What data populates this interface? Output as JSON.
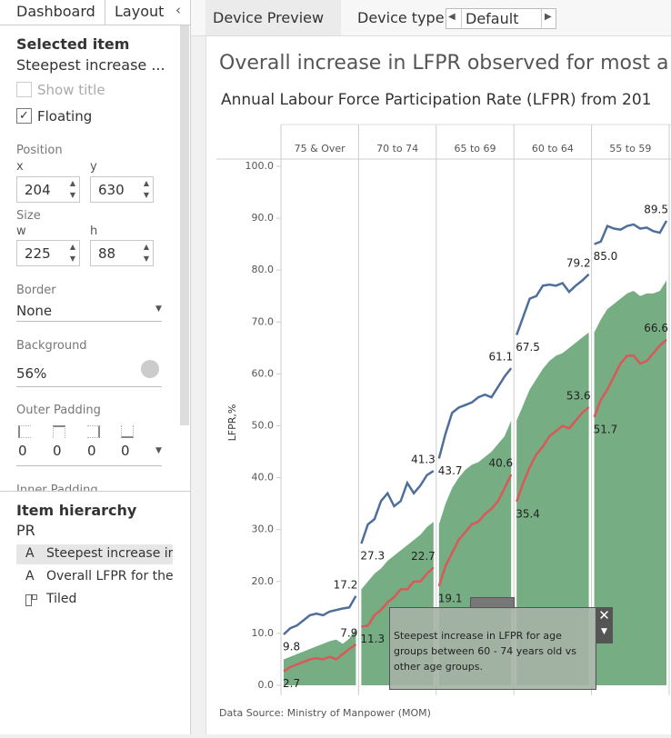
{
  "sidebar": {
    "tabs": [
      "Dashboard",
      "Layout"
    ],
    "selected_item": {
      "heading": "Selected item",
      "name": "Steepest increase ...",
      "show_title": "Show title",
      "floating": "Floating"
    },
    "position": {
      "label": "Position",
      "x_label": "x",
      "y_label": "y",
      "x": 204,
      "y": 630
    },
    "size": {
      "label": "Size",
      "w_label": "w",
      "h_label": "h",
      "w": 225,
      "h": 88
    },
    "border": {
      "label": "Border",
      "value": "None"
    },
    "background": {
      "label": "Background",
      "value": "56%"
    },
    "outer_padding": {
      "label": "Outer Padding",
      "values": [
        0,
        0,
        0,
        0
      ]
    },
    "inner_padding": {
      "label": "Inner Padding"
    },
    "hierarchy": {
      "heading": "Item hierarchy",
      "root": "PR",
      "items": [
        "Steepest increase in",
        "Overall LFPR for thes",
        "Tiled"
      ]
    }
  },
  "toolbar": {
    "device_preview": "Device Preview",
    "device_type_label": "Device type",
    "device_type": "Default"
  },
  "dashboard": {
    "title": "Overall increase in LFPR observed for most a",
    "subtitle": "Annual Labour Force Participation Rate (LFPR) from 201",
    "source": "Data Source: Ministry of Manpower (MOM)",
    "annotation": "Steepest increase in LFPR for age groups between 60 - 74 years old vs other age groups.",
    "chart": {
      "type": "area_line",
      "y_label": "LFPR,%",
      "ylim": [
        0,
        100
      ],
      "yticks": [
        {
          "value": 0,
          "label": "0.0"
        },
        {
          "value": 10,
          "label": "10.0"
        },
        {
          "value": 20,
          "label": "20.0"
        },
        {
          "value": 30,
          "label": "30.0"
        },
        {
          "value": 40,
          "label": "40.0"
        },
        {
          "value": 50,
          "label": "50.0"
        },
        {
          "value": 60,
          "label": "60.0"
        },
        {
          "value": 70,
          "label": "70.0"
        },
        {
          "value": 80,
          "label": "80.0"
        },
        {
          "value": 90,
          "label": "90.0"
        },
        {
          "value": 100,
          "label": "100.0"
        }
      ],
      "grid": false,
      "panels": [
        {
          "name": "75 & Over",
          "series": [
            {
              "mark": "area",
              "color": "#5f9f6c",
              "values": [
                5,
                5.5,
                6,
                6.5,
                7,
                7.5,
                8,
                8.5,
                8.8,
                8,
                9,
                11
              ]
            },
            {
              "mark": "line",
              "color": "#4e6f9a",
              "values": [
                9.8,
                11,
                11.5,
                12.5,
                13.5,
                13.8,
                13.5,
                14.2,
                14.5,
                14.8,
                15,
                17.2
              ]
            },
            {
              "mark": "line",
              "color": "#d9585a",
              "values": [
                2.7,
                3.5,
                4,
                4.5,
                5,
                5.2,
                5,
                5.5,
                5,
                6,
                7,
                7.9
              ]
            }
          ]
        },
        {
          "name": "70 to 74",
          "series": [
            {
              "mark": "area",
              "color": "#5f9f6c",
              "values": [
                18.5,
                20,
                21.5,
                22.5,
                24,
                25,
                26,
                27,
                28,
                29,
                30.5,
                31.5
              ]
            },
            {
              "mark": "line",
              "color": "#4e6f9a",
              "values": [
                27.3,
                31,
                32,
                35.5,
                37,
                34.5,
                35.5,
                39,
                37,
                38.5,
                40.5,
                41.3
              ]
            },
            {
              "mark": "line",
              "color": "#d9585a",
              "values": [
                11.3,
                11.5,
                13.5,
                14.5,
                16,
                17,
                18.5,
                18.5,
                20,
                20,
                21.5,
                22.7
              ]
            }
          ]
        },
        {
          "name": "65 to 69",
          "series": [
            {
              "mark": "area",
              "color": "#5f9f6c",
              "values": [
                31,
                35,
                38,
                40,
                41.5,
                42.5,
                43,
                44,
                45,
                46.5,
                48,
                51
              ]
            },
            {
              "mark": "line",
              "color": "#4e6f9a",
              "values": [
                43.7,
                48.5,
                52.5,
                53.5,
                54,
                54.5,
                55.5,
                56,
                55.5,
                57.5,
                59.5,
                61.1
              ]
            },
            {
              "mark": "line",
              "color": "#d9585a",
              "values": [
                19.1,
                23,
                25.5,
                28,
                29.5,
                31,
                31.5,
                33,
                34,
                35.5,
                38,
                40.6
              ]
            }
          ]
        },
        {
          "name": "60 to 64",
          "series": [
            {
              "mark": "area",
              "color": "#5f9f6c",
              "values": [
                51,
                54,
                57,
                59,
                61,
                62.5,
                63.5,
                64,
                65,
                66,
                67,
                68
              ]
            },
            {
              "mark": "line",
              "color": "#4e6f9a",
              "values": [
                67.5,
                71,
                74.5,
                75,
                77,
                77.2,
                77,
                77.5,
                75.8,
                77,
                78,
                79.2
              ]
            },
            {
              "mark": "line",
              "color": "#d9585a",
              "values": [
                35.4,
                39,
                42,
                44.5,
                46,
                48,
                49,
                50,
                49.5,
                51,
                52.5,
                53.6
              ]
            }
          ]
        },
        {
          "name": "55 to 59",
          "series": [
            {
              "mark": "area",
              "color": "#5f9f6c",
              "values": [
                68,
                70.5,
                72.5,
                73.5,
                74.5,
                75.5,
                76,
                75,
                75.5,
                75.5,
                76,
                78
              ]
            },
            {
              "mark": "line",
              "color": "#4e6f9a",
              "values": [
                85,
                85.5,
                88.5,
                88,
                87.8,
                88.5,
                88.8,
                88,
                88.2,
                87.5,
                87.2,
                89.5
              ],
              "value_labels": [
                "85.0",
                null,
                null,
                null,
                null,
                null,
                null,
                null,
                null,
                null,
                null,
                "89.5"
              ]
            },
            {
              "mark": "line",
              "color": "#d9585a",
              "values": [
                51.7,
                55,
                57,
                59.5,
                62,
                63.5,
                63.5,
                62,
                62.5,
                64,
                65.5,
                66.6
              ]
            }
          ]
        }
      ]
    }
  }
}
